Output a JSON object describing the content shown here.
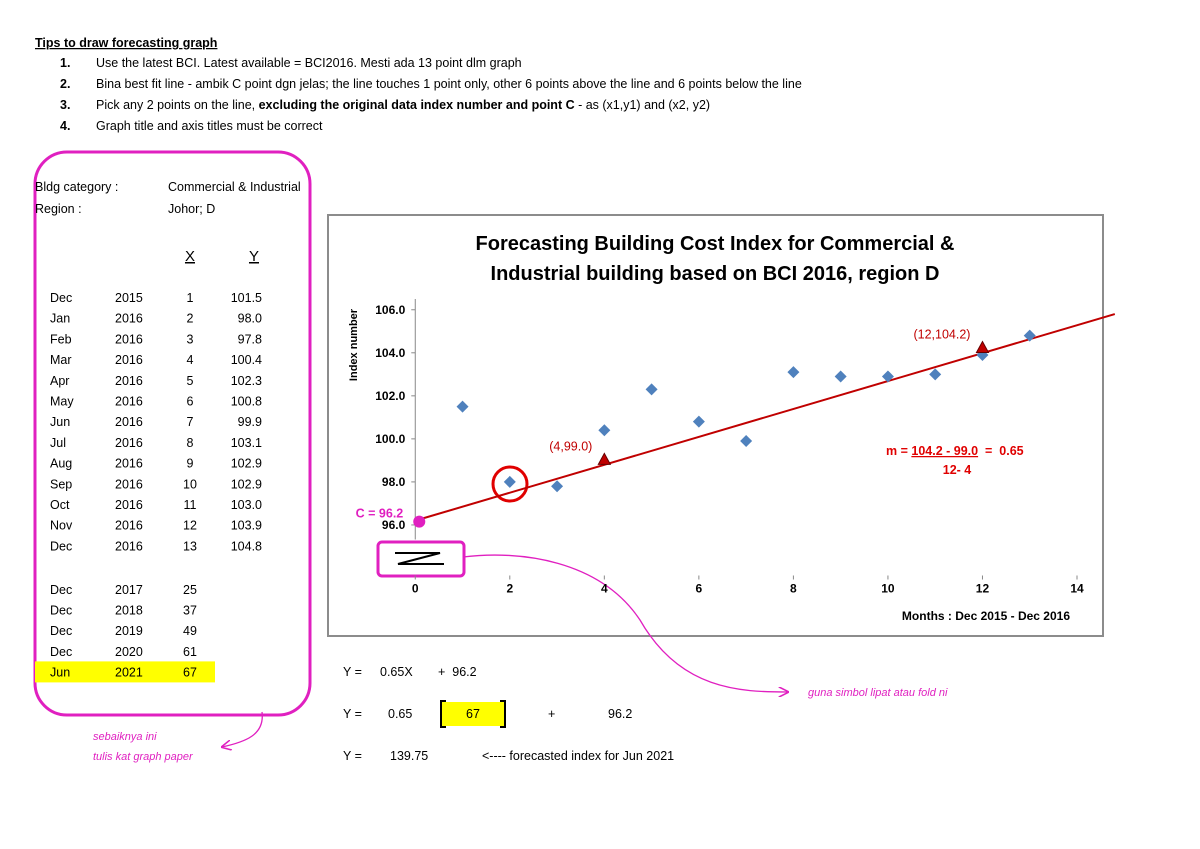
{
  "tips": {
    "title": "Tips to draw forecasting graph",
    "items": [
      {
        "number": "1.",
        "parts": [
          {
            "text": "Use the latest BCI. Latest available = BCI2016. Mesti ada 13 point dlm graph",
            "bold": false
          }
        ]
      },
      {
        "number": "2.",
        "parts": [
          {
            "text": "Bina best fit line - ambik C point dgn jelas; the line touches 1 point only, other 6 points above the line and 6 points below the line",
            "bold": false
          }
        ]
      },
      {
        "number": "3.",
        "parts": [
          {
            "text": "Pick any 2 points on the line, ",
            "bold": false
          },
          {
            "text": "excluding the original data index number and point C",
            "bold": true
          },
          {
            "text": " - as (x1,y1) and (x2, y2)",
            "bold": false
          }
        ]
      },
      {
        "number": "4.",
        "parts": [
          {
            "text": "Graph title and axis titles must be correct",
            "bold": false
          }
        ]
      }
    ]
  },
  "table": {
    "category_label": "Bldg category :",
    "category": "Commercial & Industrial",
    "region_label": "Region :",
    "region": "Johor; D",
    "headers": [
      "X",
      "Y"
    ],
    "rows": [
      [
        "Dec",
        "2015",
        "1",
        "101.5"
      ],
      [
        "Jan",
        "2016",
        "2",
        "98.0"
      ],
      [
        "Feb",
        "2016",
        "3",
        "97.8"
      ],
      [
        "Mar",
        "2016",
        "4",
        "100.4"
      ],
      [
        "Apr",
        "2016",
        "5",
        "102.3"
      ],
      [
        "May",
        "2016",
        "6",
        "100.8"
      ],
      [
        "Jun",
        "2016",
        "7",
        "99.9"
      ],
      [
        "Jul",
        "2016",
        "8",
        "103.1"
      ],
      [
        "Aug",
        "2016",
        "9",
        "102.9"
      ],
      [
        "Sep",
        "2016",
        "10",
        "102.9"
      ],
      [
        "Oct",
        "2016",
        "11",
        "103.0"
      ],
      [
        "Nov",
        "2016",
        "12",
        "103.9"
      ],
      [
        "Dec",
        "2016",
        "13",
        "104.8"
      ]
    ],
    "forecast_rows": [
      [
        "Dec",
        "2017",
        "25"
      ],
      [
        "Dec",
        "2018",
        "37"
      ],
      [
        "Dec",
        "2019",
        "49"
      ],
      [
        "Dec",
        "2020",
        "61"
      ],
      [
        "Jun",
        "2021",
        "67"
      ]
    ]
  },
  "chart": {
    "type": "scatter",
    "title": [
      "Forecasting Building Cost Index for Commercial &",
      "Industrial building based on BCI 2016, region D"
    ],
    "y_label": "Index number",
    "x_label": "Months : Dec 2015 - Dec 2016",
    "xlim": [
      -1,
      14
    ],
    "ylim": [
      93,
      106.5
    ],
    "xticks": [
      0,
      2,
      4,
      6,
      8,
      10,
      12,
      14
    ],
    "yticks": [
      {
        "value": 96,
        "label": "96.0"
      },
      {
        "value": 98,
        "label": "98.0"
      },
      {
        "value": 100,
        "label": "100.0"
      },
      {
        "value": 102,
        "label": "102.0"
      },
      {
        "value": 104,
        "label": "104.0"
      },
      {
        "value": 106,
        "label": "106.0"
      }
    ],
    "series": [
      {
        "color": "#4f81bd",
        "x": [
          1,
          2,
          3,
          4,
          5,
          6,
          7,
          8,
          9,
          10,
          11,
          12,
          13
        ],
        "y": [
          101.5,
          98.0,
          97.8,
          100.4,
          102.3,
          100.8,
          99.9,
          103.1,
          102.9,
          102.9,
          103.0,
          103.9,
          104.8
        ]
      }
    ],
    "trend": {
      "color": "#c00000",
      "x": [
        0,
        14.8
      ],
      "y": [
        96.2,
        105.8
      ]
    },
    "annotations": [
      {
        "text": "C = 96.2",
        "x": 0,
        "y": 96.2,
        "color": "#e020c0"
      },
      {
        "text": "(4,99.0)",
        "x": 4,
        "y": 99.0,
        "color": "#c00000"
      },
      {
        "text": "(12,104.2)",
        "x": 12,
        "y": 104.2,
        "color": "#c00000"
      }
    ],
    "slope": {
      "prefix": "m = ",
      "numerator": "104.2 - 99.0",
      "result": "  =  0.65",
      "denominator": "12- 4"
    }
  },
  "equations": [
    [
      "Y =",
      "0.65X",
      "+  96.2"
    ],
    [
      "Y =",
      "0.65",
      "67",
      "+",
      "96.2"
    ],
    [
      "Y =",
      "139.75",
      "<---- forecasted index for Jun 2021"
    ]
  ],
  "notes": {
    "fold": "guna simbol lipat atau fold ni",
    "graph_paper": [
      "sebaiknya ini",
      "tulis kat graph paper"
    ]
  }
}
